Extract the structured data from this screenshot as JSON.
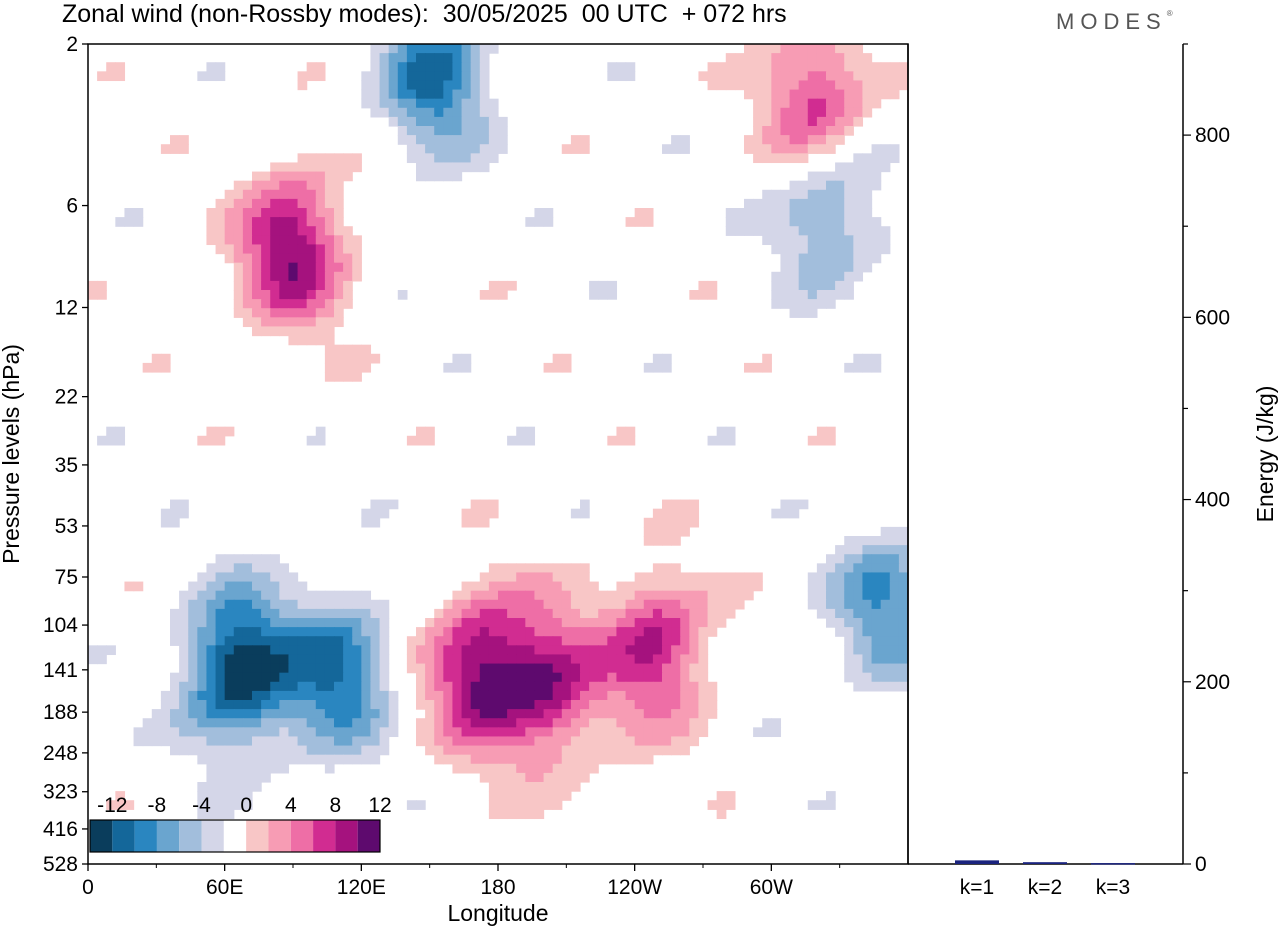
{
  "header": {
    "title": "Zonal wind (non-Rossby modes):  30/05/2025  00 UTC  + 072 hrs",
    "brand": "MODES",
    "brand_mark": "®"
  },
  "chart_data": [
    {
      "type": "heatmap",
      "title": "Zonal wind (non-Rossby modes):  30/05/2025  00 UTC  + 072 hrs",
      "xlabel": "Longitude",
      "ylabel": "Pressure levels (hPa)",
      "x_ticks": [
        "0",
        "60E",
        "120E",
        "180",
        "120W",
        "60W"
      ],
      "y_ticks": [
        "2",
        "6",
        "12",
        "22",
        "35",
        "53",
        "75",
        "104",
        "141",
        "188",
        "248",
        "323",
        "416",
        "528"
      ],
      "colorbar": {
        "labels": [
          "-12",
          "-8",
          "-4",
          "0",
          "4",
          "8",
          "12"
        ],
        "levels": [
          -14,
          -12,
          -10,
          -8,
          -6,
          -4,
          -2,
          2,
          4,
          6,
          8,
          10,
          12,
          14
        ],
        "colors": [
          "#0a3d5c",
          "#14679a",
          "#2a86c0",
          "#6aa5cf",
          "#a2bedc",
          "#d4d6e8",
          "#ffffff",
          "#f8c6c6",
          "#f79cb4",
          "#ee6ea6",
          "#d12c91",
          "#a5127e",
          "#5e0a6e"
        ]
      },
      "features": [
        {
          "sign": "negative",
          "center_lon": 66,
          "center_level_hPa": 141,
          "peak": -14
        },
        {
          "sign": "negative",
          "center_lon": 110,
          "center_level_hPa": 141,
          "peak": -10
        },
        {
          "sign": "positive",
          "center_lon": 172,
          "center_level_hPa": 141,
          "peak": 12
        },
        {
          "sign": "positive",
          "center_lon": 203,
          "center_level_hPa": 160,
          "peak": 10
        },
        {
          "sign": "positive",
          "center_lon": 250,
          "center_level_hPa": 120,
          "peak": 10
        },
        {
          "sign": "negative",
          "center_lon": 152,
          "center_level_hPa": 2.5,
          "peak": -10
        },
        {
          "sign": "positive",
          "center_lon": 90,
          "center_level_hPa": 8,
          "peak": 12
        },
        {
          "sign": "negative",
          "center_lon": 325,
          "center_level_hPa": 6,
          "peak": -8
        },
        {
          "sign": "negative",
          "center_lon": 350,
          "center_level_hPa": 90,
          "peak": -8
        },
        {
          "sign": "positive",
          "center_lon": 320,
          "center_level_hPa": 3,
          "peak": 10
        }
      ]
    },
    {
      "type": "bar",
      "ylabel": "Energy (J/kg)",
      "categories": [
        "k=1",
        "k=2",
        "k=3"
      ],
      "values": [
        4,
        2,
        1
      ],
      "ylim": [
        0,
        900
      ],
      "y_ticks": [
        0,
        200,
        400,
        600,
        800
      ],
      "bar_color": "#1a237e"
    }
  ]
}
